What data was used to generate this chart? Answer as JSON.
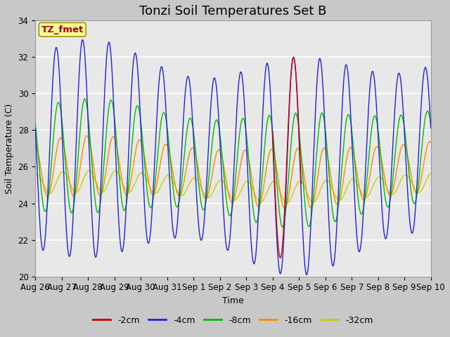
{
  "title": "Tonzi Soil Temperatures Set B",
  "xlabel": "Time",
  "ylabel": "Soil Temperature (C)",
  "ylim": [
    20,
    34
  ],
  "xlim": [
    0,
    360
  ],
  "xtick_labels": [
    "Aug 26",
    "Aug 27",
    "Aug 28",
    "Aug 29",
    "Aug 30",
    "Aug 31",
    "Sep 1",
    "Sep 2",
    "Sep 3",
    "Sep 4",
    "Sep 5",
    "Sep 6",
    "Sep 7",
    "Sep 8",
    "Sep 9",
    "Sep 10"
  ],
  "ytick_labels": [
    "20",
    "22",
    "24",
    "26",
    "28",
    "30",
    "32",
    "34"
  ],
  "ytick_positions": [
    20,
    22,
    24,
    26,
    28,
    30,
    32,
    34
  ],
  "legend_labels": [
    "-2cm",
    "-4cm",
    "-8cm",
    "-16cm",
    "-32cm"
  ],
  "legend_colors": [
    "#cc0000",
    "#2222dd",
    "#00bb00",
    "#ff8800",
    "#cccc00"
  ],
  "annotation_text": "TZ_fmet",
  "annotation_color": "#aa0000",
  "annotation_bg": "#ffff99",
  "title_fontsize": 13,
  "label_fontsize": 9,
  "tick_fontsize": 8.5
}
